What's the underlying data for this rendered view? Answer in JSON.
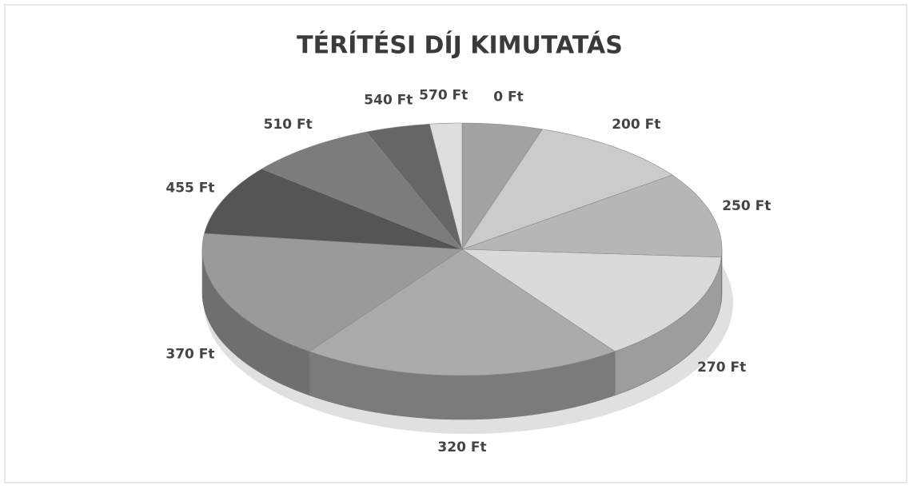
{
  "chart_data": {
    "type": "pie",
    "title": "TÉRÍTÉSI DÍJ KIMUTATÁS",
    "categories": [
      "0 Ft",
      "200 Ft",
      "250 Ft",
      "270 Ft",
      "320 Ft",
      "370 Ft",
      "455 Ft",
      "510 Ft",
      "540 Ft",
      "570 Ft"
    ],
    "values": [
      5,
      10,
      11,
      14,
      20,
      17,
      9,
      8,
      4,
      2
    ],
    "colors": [
      "#a2a2a2",
      "#cbcbcb",
      "#b6b6b6",
      "#dadada",
      "#ababab",
      "#9a9a9a",
      "#555555",
      "#7c7c7c",
      "#666666",
      "#dedede"
    ]
  }
}
